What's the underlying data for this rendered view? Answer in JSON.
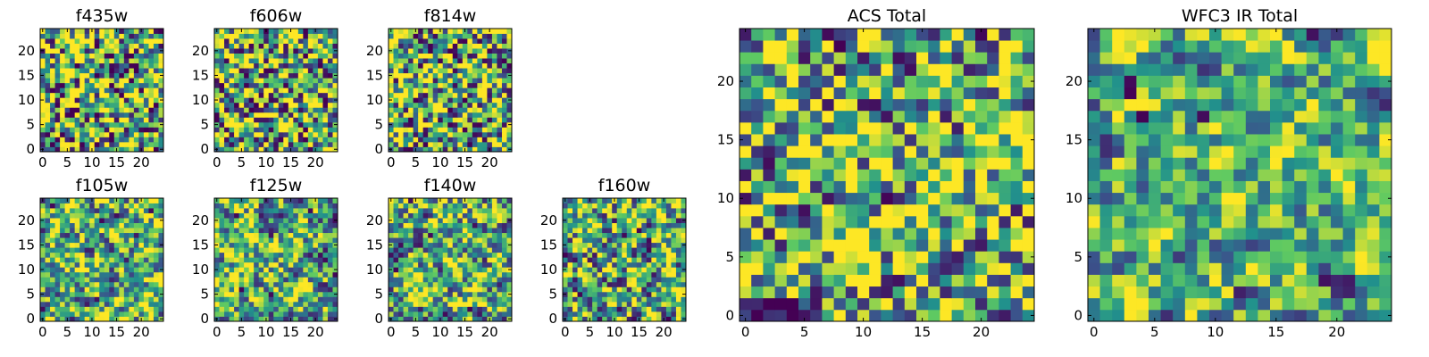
{
  "chart_data": {
    "type": "heatmap",
    "colormap": "viridis",
    "colormap_stops": [
      "#440154",
      "#3b528b",
      "#21918c",
      "#5ec962",
      "#fde725"
    ],
    "grid_size": [
      25,
      25
    ],
    "axis_range": [
      0,
      24
    ],
    "panels": [
      {
        "id": "f435w",
        "title": "f435w",
        "xticks": [
          "0",
          "5",
          "10",
          "15",
          "20"
        ],
        "yticks": [
          "0",
          "5",
          "10",
          "15",
          "20"
        ],
        "value_range": [
          0,
          1
        ],
        "smoothness": 0.15,
        "seed": 11
      },
      {
        "id": "f606w",
        "title": "f606w",
        "xticks": [
          "0",
          "5",
          "10",
          "15",
          "20"
        ],
        "yticks": [
          "0",
          "5",
          "10",
          "15",
          "20"
        ],
        "value_range": [
          0,
          1
        ],
        "smoothness": 0.2,
        "seed": 23
      },
      {
        "id": "f814w",
        "title": "f814w",
        "xticks": [
          "0",
          "5",
          "10",
          "15",
          "20"
        ],
        "yticks": [
          "0",
          "5",
          "10",
          "15",
          "20"
        ],
        "value_range": [
          0,
          1
        ],
        "smoothness": 0.2,
        "seed": 37
      },
      {
        "id": "f105w",
        "title": "f105w",
        "xticks": [
          "0",
          "5",
          "10",
          "15",
          "20"
        ],
        "yticks": [
          "0",
          "5",
          "10",
          "15",
          "20"
        ],
        "value_range": [
          0,
          1
        ],
        "smoothness": 0.45,
        "seed": 41
      },
      {
        "id": "f125w",
        "title": "f125w",
        "xticks": [
          "0",
          "5",
          "10",
          "15",
          "20"
        ],
        "yticks": [
          "0",
          "5",
          "10",
          "15",
          "20"
        ],
        "value_range": [
          0,
          1
        ],
        "smoothness": 0.45,
        "seed": 53
      },
      {
        "id": "f140w",
        "title": "f140w",
        "xticks": [
          "0",
          "5",
          "10",
          "15",
          "20"
        ],
        "yticks": [
          "0",
          "5",
          "10",
          "15",
          "20"
        ],
        "value_range": [
          0,
          1
        ],
        "smoothness": 0.45,
        "seed": 67
      },
      {
        "id": "f160w",
        "title": "f160w",
        "xticks": [
          "0",
          "5",
          "10",
          "15",
          "20"
        ],
        "yticks": [
          "0",
          "5",
          "10",
          "15",
          "20"
        ],
        "value_range": [
          0,
          1
        ],
        "smoothness": 0.35,
        "seed": 79
      },
      {
        "id": "acs-total",
        "title": "ACS Total",
        "xticks": [
          "0",
          "5",
          "10",
          "15",
          "20"
        ],
        "yticks": [
          "0",
          "5",
          "10",
          "15",
          "20"
        ],
        "value_range": [
          0,
          1
        ],
        "smoothness": 0.3,
        "seed": 97
      },
      {
        "id": "wfc3-ir-total",
        "title": "WFC3 IR Total",
        "xticks": [
          "0",
          "5",
          "10",
          "15",
          "20"
        ],
        "yticks": [
          "0",
          "5",
          "10",
          "15",
          "20"
        ],
        "value_range": [
          0,
          1
        ],
        "smoothness": 0.55,
        "seed": 113
      }
    ]
  }
}
